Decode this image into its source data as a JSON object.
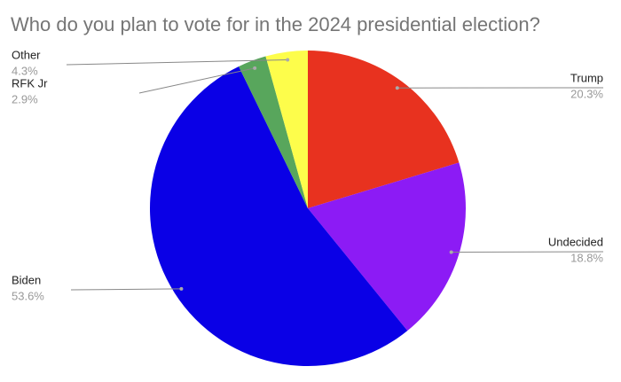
{
  "chart_data": {
    "type": "pie",
    "title": "Who do you plan to vote for in the 2024 presidential election?",
    "categories": [
      "Trump",
      "Undecided",
      "Biden",
      "RFK Jr",
      "Other"
    ],
    "values": [
      20.3,
      18.8,
      53.6,
      2.9,
      4.3
    ],
    "value_labels": [
      "20.3%",
      "18.8%",
      "53.6%",
      "2.9%",
      "4.3%"
    ],
    "colors": [
      "#e8321f",
      "#8c1bf5",
      "#0a00e6",
      "#58a65c",
      "#fdfd4b"
    ]
  }
}
